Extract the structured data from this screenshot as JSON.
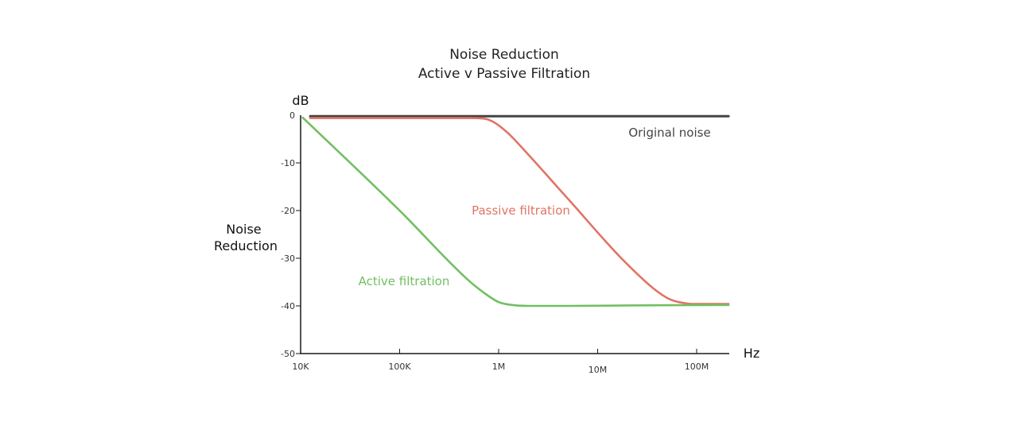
{
  "chart_data": {
    "type": "line",
    "title": "Noise Reduction",
    "subtitle": "Active v Passive Filtration",
    "ylabel": "Noise Reduction",
    "yunit": "dB",
    "xunit": "Hz",
    "xscale": "log",
    "xlim_log10": [
      4,
      8.33
    ],
    "ylim": [
      -50,
      0
    ],
    "x_ticks": [
      {
        "value": 10000,
        "label": "10K"
      },
      {
        "value": 100000,
        "label": "100K"
      },
      {
        "value": 1000000,
        "label": "1M"
      },
      {
        "value": 10000000,
        "label": "10M"
      },
      {
        "value": 100000000,
        "label": "100M"
      }
    ],
    "y_ticks": [
      {
        "value": 0,
        "label": "0"
      },
      {
        "value": -10,
        "label": "-10"
      },
      {
        "value": -20,
        "label": "-20"
      },
      {
        "value": -30,
        "label": "-30"
      },
      {
        "value": -40,
        "label": "-40"
      },
      {
        "value": -50,
        "label": "-50"
      }
    ],
    "series": [
      {
        "name": "Original noise",
        "color": "#444444",
        "label_position": "top-right",
        "x": [
          12500,
          210000000
        ],
        "y": [
          -0.2,
          -0.2
        ]
      },
      {
        "name": "Passive filtration",
        "color": "#e07466",
        "label_position": "middle",
        "x": [
          12500,
          500000,
          700000,
          900000,
          1250000,
          2000000,
          5000000,
          20000000,
          50000000,
          80000000,
          100000000,
          210000000
        ],
        "y": [
          -0.6,
          -0.6,
          -0.7,
          -1.5,
          -3.8,
          -8.3,
          -17.5,
          -31.3,
          -38.3,
          -39.5,
          -39.6,
          -39.6
        ]
      },
      {
        "name": "Active filtration",
        "color": "#72bf63",
        "label_position": "lower-left",
        "x": [
          10500,
          100000,
          500000,
          800000,
          1000000,
          1250000,
          2000000,
          5000000,
          20000000,
          210000000
        ],
        "y": [
          -0.5,
          -20.0,
          -34.7,
          -38.0,
          -39.2,
          -39.7,
          -40.0,
          -40.0,
          -39.9,
          -39.8
        ]
      }
    ]
  }
}
